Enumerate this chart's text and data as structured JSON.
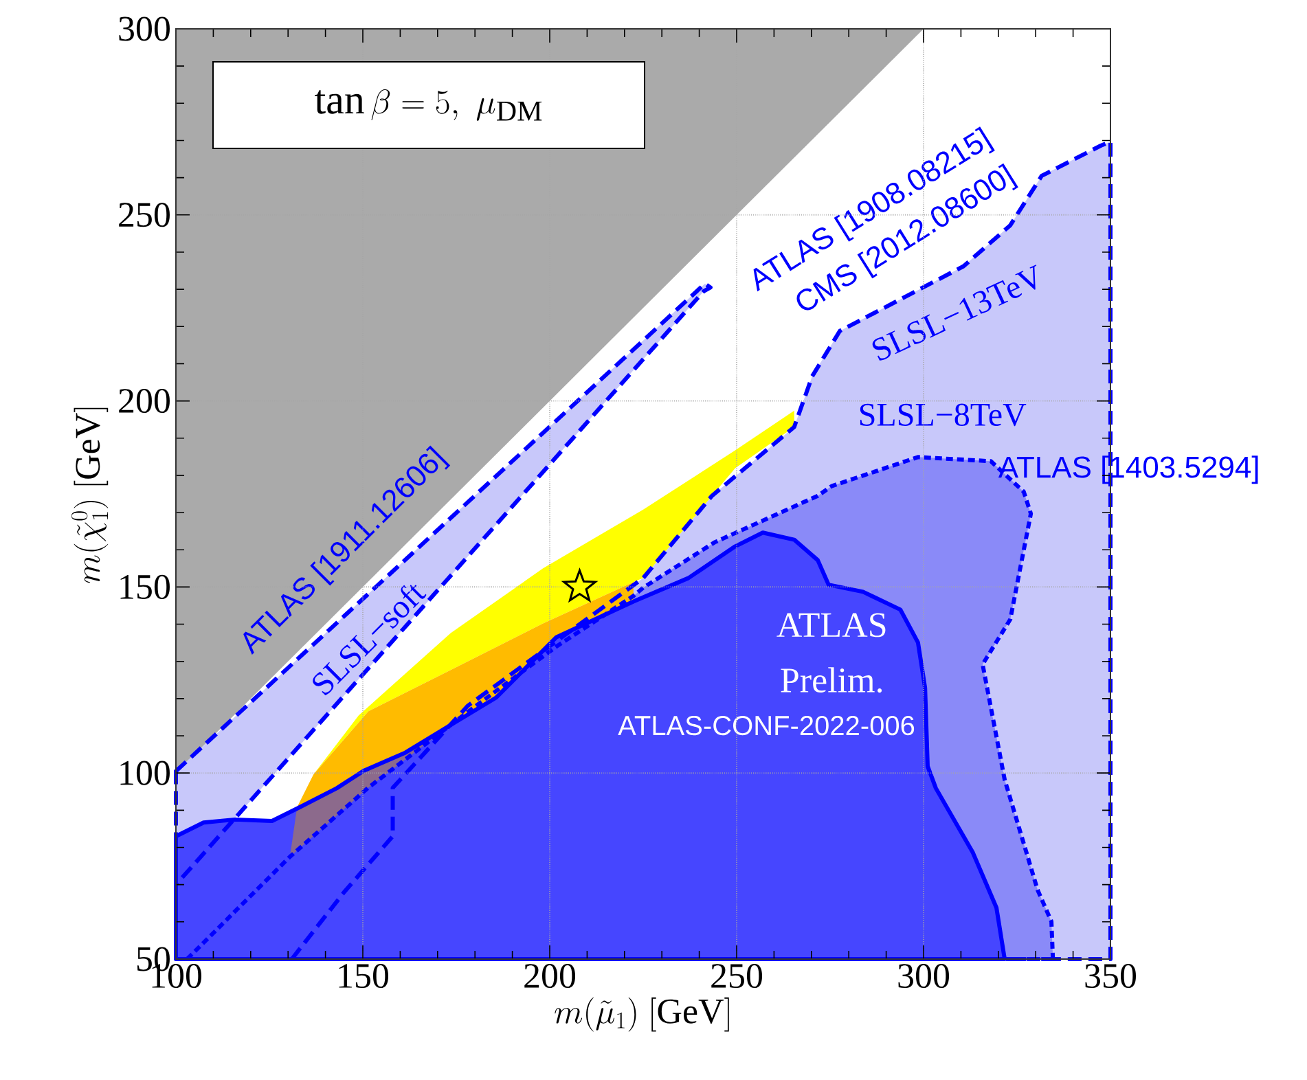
{
  "chart_data": {
    "type": "area",
    "xlabel": "m(\\tilde{\\mu}_1)\\ [\\mathrm{GeV}]",
    "ylabel": "m(\\tilde{\\chi}^0_1)\\ [\\mathrm{GeV}]",
    "xlim": [
      100,
      350
    ],
    "ylim": [
      50,
      300
    ],
    "xticks": [
      100,
      150,
      200,
      250,
      300,
      350
    ],
    "yticks": [
      50,
      100,
      150,
      200,
      250,
      300
    ],
    "grid": true,
    "series": [
      {
        "color": "#aaaaaa",
        "x": [
          100,
          100,
          300
        ],
        "values": [
          100,
          300,
          300
        ]
      },
      {
        "color": "#c8c8fa",
        "line_style": "dashed",
        "x": [
          100,
          241.5,
          243,
          241.2,
          100
        ],
        "values": [
          100.5,
          231.5,
          230.5,
          229.5,
          70
        ]
      },
      {
        "color": "#c8c8fa",
        "line_style": "dashed",
        "x": [
          131,
          145,
          158,
          158,
          178,
          225,
          243.4,
          265.4,
          270.2,
          277.6,
          293.8,
          310.7,
          323.2,
          331.6,
          347.4,
          350,
          350
        ],
        "values": [
          50,
          68,
          83,
          96,
          118,
          152.4,
          174.5,
          193,
          206.6,
          218.8,
          227.3,
          236.2,
          247.2,
          260.5,
          268.6,
          269.7,
          50
        ]
      },
      {
        "color": "#8a8af8",
        "line_style": "dotted",
        "x": [
          103,
          130.5,
          151.5,
          178.3,
          201.8,
          222.4,
          225,
          244.1,
          271.7,
          275.4,
          298.5,
          318,
          326.8,
          328.7,
          323.2,
          315.8,
          321.7,
          330.5,
          334.2,
          334.6
        ],
        "values": [
          50,
          77.5,
          96.1,
          116.6,
          134,
          147.6,
          149.8,
          162,
          174.5,
          177.1,
          184.9,
          183.8,
          175.6,
          169.7,
          141.3,
          129.2,
          98.2,
          68.6,
          60.1,
          50
        ]
      },
      {
        "color": "#4646ff",
        "line_style": "solid",
        "x": [
          100,
          107.4,
          115.8,
          125.7,
          133.1,
          143,
          150.4,
          161.4,
          173.5,
          185.7,
          201.8,
          222.4,
          237.1,
          249.6,
          257,
          265.4,
          271.7,
          274.6,
          283.8,
          293.8,
          298.5,
          300.4,
          301.1,
          303.3,
          313.2,
          319.5,
          321.7,
          100
        ],
        "values": [
          83,
          86.7,
          87.5,
          87.1,
          90.8,
          95.9,
          100.7,
          105.5,
          112.9,
          120.3,
          136.5,
          146.1,
          152.4,
          160.9,
          164.6,
          162.7,
          157.2,
          150.6,
          148.7,
          143.9,
          135.1,
          122.9,
          101.8,
          95.9,
          78.6,
          63.8,
          50,
          50
        ]
      },
      {
        "color": "#ffff00",
        "x": [
          136.8,
          148.9,
          173.5,
          198.2,
          225,
          249.6,
          265.4,
          265.4,
          249.6,
          243.4,
          225,
          222.4,
          198.2,
          173.5,
          151.5
        ],
        "values": [
          99.6,
          115.5,
          137.6,
          155,
          170.8,
          186.7,
          197.4,
          193,
          181.9,
          174.5,
          152.4,
          151.3,
          140.2,
          127.7,
          116.6
        ]
      },
      {
        "color": "#ffbb00",
        "x": [
          132.4,
          136.8,
          151.5,
          173.5,
          198.2,
          222.4,
          222.4,
          201.8,
          185.7,
          173.5,
          161.4,
          150.4,
          143,
          133.1
        ],
        "values": [
          90.8,
          99.6,
          116.6,
          127.7,
          140.2,
          151.3,
          146.1,
          136.5,
          120.3,
          112.9,
          105.5,
          100.7,
          95.9,
          90.8
        ]
      },
      {
        "color": "#8c6a8c",
        "x": [
          130.5,
          132.4,
          143,
          150.4,
          161.4,
          173.5,
          178.3,
          151.5
        ],
        "values": [
          77.5,
          90.8,
          95.9,
          100.7,
          105.5,
          112.9,
          116.6,
          96.1
        ]
      },
      {
        "type": "scatter",
        "marker": "star",
        "color": "#ffff00",
        "x": [
          208
        ],
        "values": [
          150
        ]
      }
    ],
    "annotations": [
      "\\tan\\beta = 5,\\ \\mu_{\\mathrm{DM}}",
      "ATLAS [1911.12606]",
      "SLSL−soft",
      "ATLAS [1908.08215]",
      "CMS [2012.08600]",
      "SLSL−13TeV",
      "SLSL−8TeV",
      "ATLAS [1403.5294]",
      "ATLAS",
      "Prelim.",
      "ATLAS-CONF-2022-006"
    ]
  }
}
